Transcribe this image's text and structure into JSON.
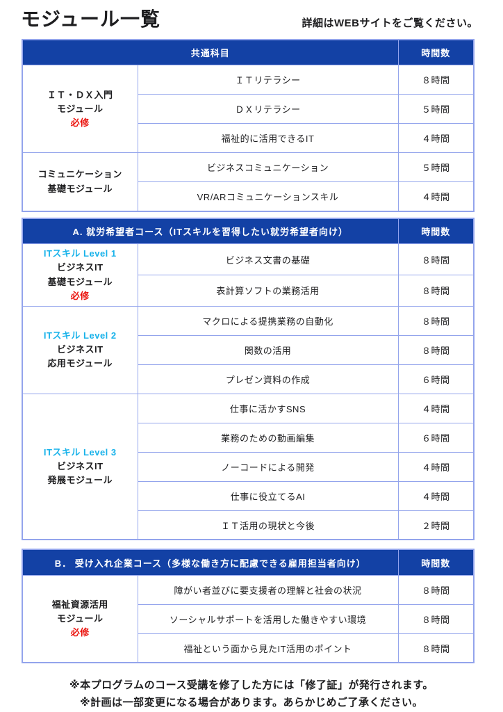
{
  "page": {
    "title": "モジュール一覧",
    "subtitle": "詳細はWEBサイトをご覧ください。",
    "footnotes": [
      "※本プログラムのコース受講を修了した方には「修了証」が発行されます。",
      "※計画は一部変更になる場合があります。あらかじめご了承ください。"
    ]
  },
  "colors": {
    "header_blue": "#1341a5",
    "border_blue": "#93a4ec",
    "level_cyan": "#17b2ea",
    "required_red": "#ea120c",
    "text_color": "#1d1d1f"
  },
  "tables": [
    {
      "header": "共通科目",
      "hours_header": "時間数",
      "groups": [
        {
          "name_lines": [
            "ＩＴ・ＤＸ入門",
            "モジュール"
          ],
          "required_label": "必修",
          "rows": [
            {
              "subject": "ＩＴリテラシー",
              "hours": "８時間"
            },
            {
              "subject": "ＤＸリテラシー",
              "hours": "５時間"
            },
            {
              "subject": "福祉的に活用できるIT",
              "hours": "４時間"
            }
          ]
        },
        {
          "name_lines": [
            "コミュニケーション",
            "基礎モジュール"
          ],
          "rows": [
            {
              "subject": "ビジネスコミュニケーション",
              "hours": "５時間"
            },
            {
              "subject": "VR/ARコミュニケーションスキル",
              "hours": "４時間"
            }
          ]
        }
      ]
    },
    {
      "header": "A. 就労希望者コース（ITスキルを習得したい就労希望者向け）",
      "hours_header": "時間数",
      "groups": [
        {
          "level_label": "ITスキル Level 1",
          "name_lines": [
            "ビジネスIT",
            "基礎モジュール"
          ],
          "required_label": "必修",
          "rows": [
            {
              "subject": "ビジネス文書の基礎",
              "hours": "８時間"
            },
            {
              "subject": "表計算ソフトの業務活用",
              "hours": "８時間"
            }
          ]
        },
        {
          "level_label": "ITスキル Level 2",
          "name_lines": [
            "ビジネスIT",
            "応用モジュール"
          ],
          "rows": [
            {
              "subject": "マクロによる提携業務の自動化",
              "hours": "８時間"
            },
            {
              "subject": "関数の活用",
              "hours": "８時間"
            },
            {
              "subject": "プレゼン資料の作成",
              "hours": "６時間"
            }
          ]
        },
        {
          "level_label": "ITスキル Level 3",
          "name_lines": [
            "ビジネスIT",
            "発展モジュール"
          ],
          "rows": [
            {
              "subject": "仕事に活かすSNS",
              "hours": "４時間"
            },
            {
              "subject": "業務のための動画編集",
              "hours": "６時間"
            },
            {
              "subject": "ノーコードによる開発",
              "hours": "４時間"
            },
            {
              "subject": "仕事に役立てるAI",
              "hours": "４時間"
            },
            {
              "subject": "ＩＴ活用の現状と今後",
              "hours": "２時間"
            }
          ]
        }
      ]
    },
    {
      "header": "B． 受け入れ企業コース（多様な働き方に配慮できる雇用担当者向け）",
      "hours_header": "時間数",
      "groups": [
        {
          "name_lines": [
            "福祉資源活用",
            "モジュール"
          ],
          "required_label": "必修",
          "rows": [
            {
              "subject": "障がい者並びに要支援者の理解と社会の状況",
              "hours": "８時間"
            },
            {
              "subject": "ソーシャルサポートを活用した働きやすい環境",
              "hours": "８時間"
            },
            {
              "subject": "福祉という面から見たIT活用のポイント",
              "hours": "８時間"
            }
          ]
        }
      ]
    }
  ]
}
